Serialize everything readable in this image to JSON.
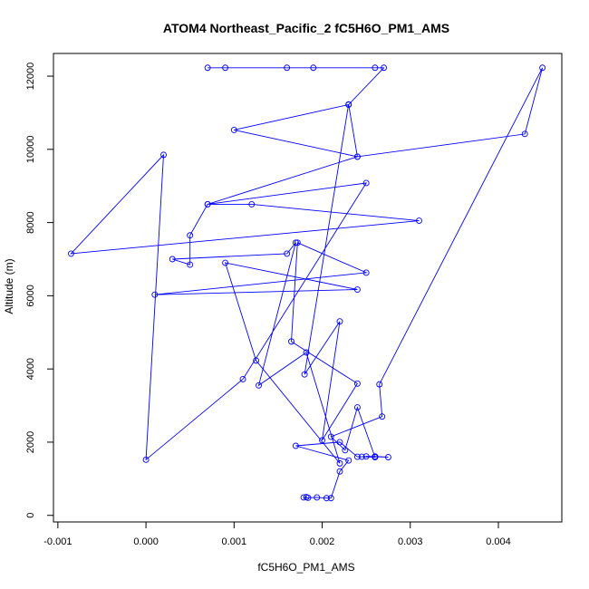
{
  "chart_data": {
    "type": "line",
    "title": "ATOM4 Northeast_Pacific_2 fC5H6O_PM1_AMS",
    "xlabel": "fC5H6O_PM1_AMS",
    "ylabel": "Altitude (m)",
    "xlim": [
      -0.00105,
      0.00472
    ],
    "ylim": [
      -180,
      12620
    ],
    "x_ticks": [
      -0.001,
      0.0,
      0.001,
      0.002,
      0.003,
      0.004
    ],
    "x_tick_labels": [
      "-0.001",
      "0.000",
      "0.001",
      "0.002",
      "0.003",
      "0.004"
    ],
    "y_ticks": [
      0,
      2000,
      4000,
      6000,
      8000,
      10000,
      12000
    ],
    "y_tick_labels": [
      "0",
      "2000",
      "4000",
      "6000",
      "8000",
      "10000",
      "12000"
    ],
    "grid": false,
    "series": [
      {
        "color": "#0000ff",
        "marker": "open-circle",
        "x": [
          0.00182,
          0.00179,
          0.00184,
          0.00194,
          0.00205,
          0.0021,
          0.0022,
          0.0023,
          0.0017,
          0.0022,
          0.0024,
          0.0026,
          0.0025,
          0.00275,
          0.0026,
          0.00245,
          0.0026,
          0.0024,
          0.00226,
          0.0021,
          0.00268,
          0.00265,
          0.0045,
          0.0043,
          0.0024,
          0.0023,
          0.0018,
          0.0022,
          0.002,
          0.0024,
          0.00165,
          0.00172,
          0.0025,
          0.0001,
          0.0024,
          0.0009,
          0.00125,
          0.0022,
          0.00182,
          0.00128,
          0.0017,
          0.0016,
          0.0003,
          0.0005,
          0.0005,
          0.0007,
          0.0025,
          0.0011,
          0.0,
          0.0002,
          -0.00085,
          0.0031,
          0.0012,
          0.0007,
          0.0024,
          0.001,
          0.0023,
          0.0027,
          0.0007,
          0.0016,
          0.0026,
          0.0009,
          0.0019
        ],
        "y": [
          500,
          490,
          480,
          490,
          470,
          470,
          1200,
          1500,
          1900,
          2000,
          1600,
          1600,
          1610,
          1590,
          1610,
          1600,
          1590,
          2950,
          1780,
          2150,
          2700,
          3580,
          12230,
          10420,
          9800,
          11230,
          3850,
          5300,
          2050,
          3600,
          4750,
          7450,
          6630,
          6030,
          6170,
          6900,
          4230,
          1420,
          4450,
          3550,
          7450,
          7150,
          7000,
          6850,
          7650,
          8500,
          9080,
          3720,
          1520,
          9850,
          7150,
          8050,
          8500,
          8500,
          9800,
          10530,
          11220,
          12230,
          12230,
          12230,
          12230,
          12230,
          12230
        ]
      }
    ]
  }
}
